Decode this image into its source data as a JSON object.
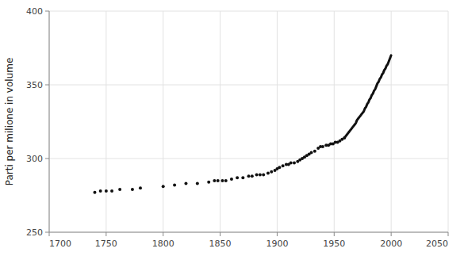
{
  "chart_data": {
    "type": "line",
    "ylabel": "Parti per milione in volume",
    "xlim": [
      1700,
      2050
    ],
    "ylim": [
      250,
      400
    ],
    "xticks": [
      1700,
      1750,
      1800,
      1850,
      1900,
      1950,
      2000,
      2050
    ],
    "yticks": [
      250,
      300,
      350,
      400
    ],
    "grid": true,
    "series": [
      {
        "type": "scatter",
        "marker": "circle",
        "color": "#111111",
        "x": [
          1740,
          1745,
          1750,
          1755,
          1762,
          1773,
          1780,
          1800,
          1810,
          1820,
          1830,
          1840,
          1845,
          1848,
          1852,
          1855,
          1860,
          1865,
          1870,
          1875,
          1878,
          1882,
          1885,
          1888,
          1892,
          1895,
          1898,
          1900,
          1902,
          1905,
          1908,
          1910,
          1912,
          1915,
          1918,
          1920,
          1922,
          1924,
          1926,
          1928,
          1930,
          1933,
          1936,
          1938,
          1940,
          1943,
          1945,
          1947,
          1949,
          1951,
          1953,
          1955,
          1957,
          1959
        ],
        "values": [
          277,
          278,
          278,
          278,
          279,
          279,
          280,
          281,
          282,
          283,
          283,
          284,
          285,
          285,
          285,
          285,
          286,
          287,
          287,
          288,
          288,
          289,
          289,
          289,
          290,
          291,
          292,
          293,
          294,
          295,
          296,
          296,
          297,
          297,
          298,
          299,
          300,
          301,
          302,
          303,
          304,
          305,
          307,
          308,
          308,
          309,
          309,
          310,
          310,
          311,
          311,
          312,
          313,
          314
        ]
      },
      {
        "type": "line",
        "line_style": "solid",
        "color": "#111111",
        "x": [
          1959,
          1960,
          1961,
          1962,
          1963,
          1964,
          1965,
          1966,
          1967,
          1968,
          1969,
          1970,
          1971,
          1972,
          1973,
          1974,
          1975,
          1976,
          1977,
          1978,
          1979,
          1980,
          1981,
          1982,
          1983,
          1984,
          1985,
          1986,
          1987,
          1988,
          1989,
          1990,
          1991,
          1992,
          1993,
          1994,
          1995,
          1996,
          1997,
          1998,
          1999,
          2000
        ],
        "values": [
          314,
          315,
          316,
          317,
          318,
          319,
          320,
          321,
          322,
          323,
          324,
          326,
          327,
          328,
          329,
          330,
          331,
          332,
          334,
          335,
          337,
          338,
          340,
          341,
          343,
          344,
          346,
          347,
          349,
          351,
          352,
          354,
          355,
          357,
          358,
          360,
          361,
          363,
          364,
          366,
          368,
          370
        ]
      }
    ]
  }
}
